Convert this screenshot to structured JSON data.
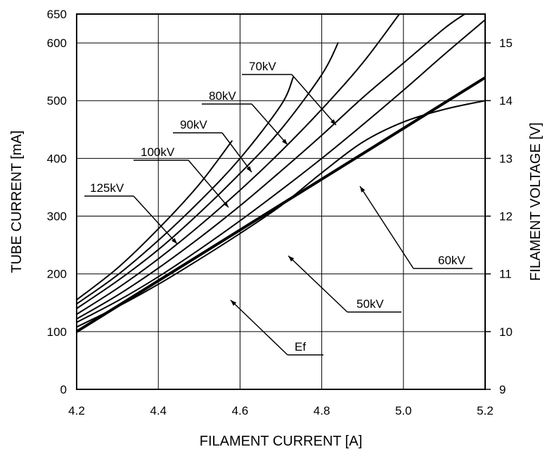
{
  "chart_data": {
    "type": "line",
    "title": "",
    "xlabel": "FILAMENT CURRENT  [A]",
    "ylabel": "TUBE CURRENT  [mA]",
    "y2label": "FILAMENT VOLTAGE  [V]",
    "xlim": [
      4.2,
      5.2
    ],
    "ylim": [
      0,
      650
    ],
    "y2lim": [
      9,
      15.5
    ],
    "grid": true,
    "legend": "inline labels with leader arrows",
    "x_ticks": [
      "4.2",
      "4.4",
      "4.6",
      "4.8",
      "5.0",
      "5.2"
    ],
    "y_ticks": [
      "0",
      "100",
      "200",
      "300",
      "400",
      "500",
      "600",
      "650"
    ],
    "y2_ticks": [
      "9",
      "10",
      "11",
      "12",
      "13",
      "14",
      "15"
    ],
    "series": [
      {
        "name": "125kV",
        "axis": "left",
        "x": [
          4.2,
          4.3,
          4.4,
          4.5,
          4.58
        ],
        "y": [
          155,
          210,
          278,
          355,
          430
        ]
      },
      {
        "name": "100kV",
        "axis": "left",
        "x": [
          4.2,
          4.3,
          4.4,
          4.5,
          4.6,
          4.7,
          4.73
        ],
        "y": [
          148,
          198,
          258,
          325,
          400,
          492,
          540
        ]
      },
      {
        "name": "90kV",
        "axis": "left",
        "x": [
          4.2,
          4.3,
          4.4,
          4.5,
          4.6,
          4.7,
          4.8,
          4.84
        ],
        "y": [
          140,
          188,
          242,
          305,
          374,
          450,
          545,
          600
        ]
      },
      {
        "name": "80kV",
        "axis": "left",
        "x": [
          4.2,
          4.3,
          4.4,
          4.5,
          4.6,
          4.7,
          4.8,
          4.9,
          4.99
        ],
        "y": [
          130,
          175,
          226,
          283,
          345,
          412,
          485,
          565,
          650
        ]
      },
      {
        "name": "70kV",
        "axis": "left",
        "x": [
          4.2,
          4.3,
          4.4,
          4.5,
          4.6,
          4.7,
          4.8,
          4.9,
          5.0,
          5.1,
          5.15
        ],
        "y": [
          122,
          163,
          210,
          262,
          318,
          378,
          440,
          505,
          565,
          625,
          650
        ]
      },
      {
        "name": "60kV",
        "axis": "left",
        "x": [
          4.2,
          4.3,
          4.4,
          4.5,
          4.6,
          4.7,
          4.8,
          4.9,
          5.0,
          5.1,
          5.2
        ],
        "y": [
          116,
          153,
          195,
          242,
          292,
          345,
          400,
          458,
          518,
          580,
          640
        ]
      },
      {
        "name": "50kV",
        "axis": "left",
        "x": [
          4.2,
          4.3,
          4.4,
          4.5,
          4.6,
          4.7,
          4.8,
          4.9,
          5.0,
          5.1,
          5.2
        ],
        "y": [
          108,
          143,
          182,
          225,
          270,
          318,
          375,
          428,
          463,
          485,
          500
        ]
      },
      {
        "name": "Ef",
        "axis": "right",
        "x": [
          4.2,
          5.2
        ],
        "y": [
          10.0,
          14.4
        ]
      }
    ]
  }
}
